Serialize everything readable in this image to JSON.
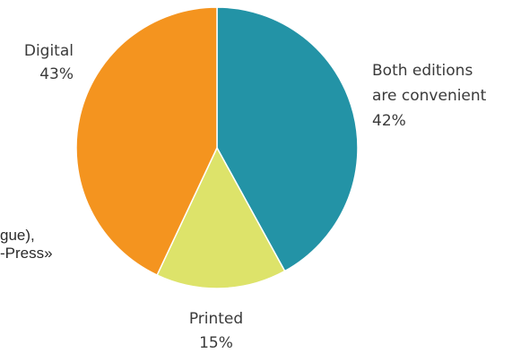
{
  "chart_data": {
    "type": "pie",
    "title": "",
    "categories": [
      "Both editions are convenient",
      "Printed",
      "Digital"
    ],
    "values": [
      42,
      15,
      43
    ],
    "value_labels": [
      "42%",
      "15%",
      "43%"
    ],
    "label_lines": [
      [
        "Both editions",
        "are convenient",
        "42%"
      ],
      [
        "Printed",
        "15%"
      ],
      [
        "Digital",
        "43%"
      ]
    ],
    "colors": [
      "#2393a6",
      "#dde36a",
      "#f4941f"
    ],
    "start_angle_deg": 0,
    "direction": "clockwise",
    "legend": "none"
  },
  "clipped_note": [
    "gue),",
    "-Press»"
  ]
}
